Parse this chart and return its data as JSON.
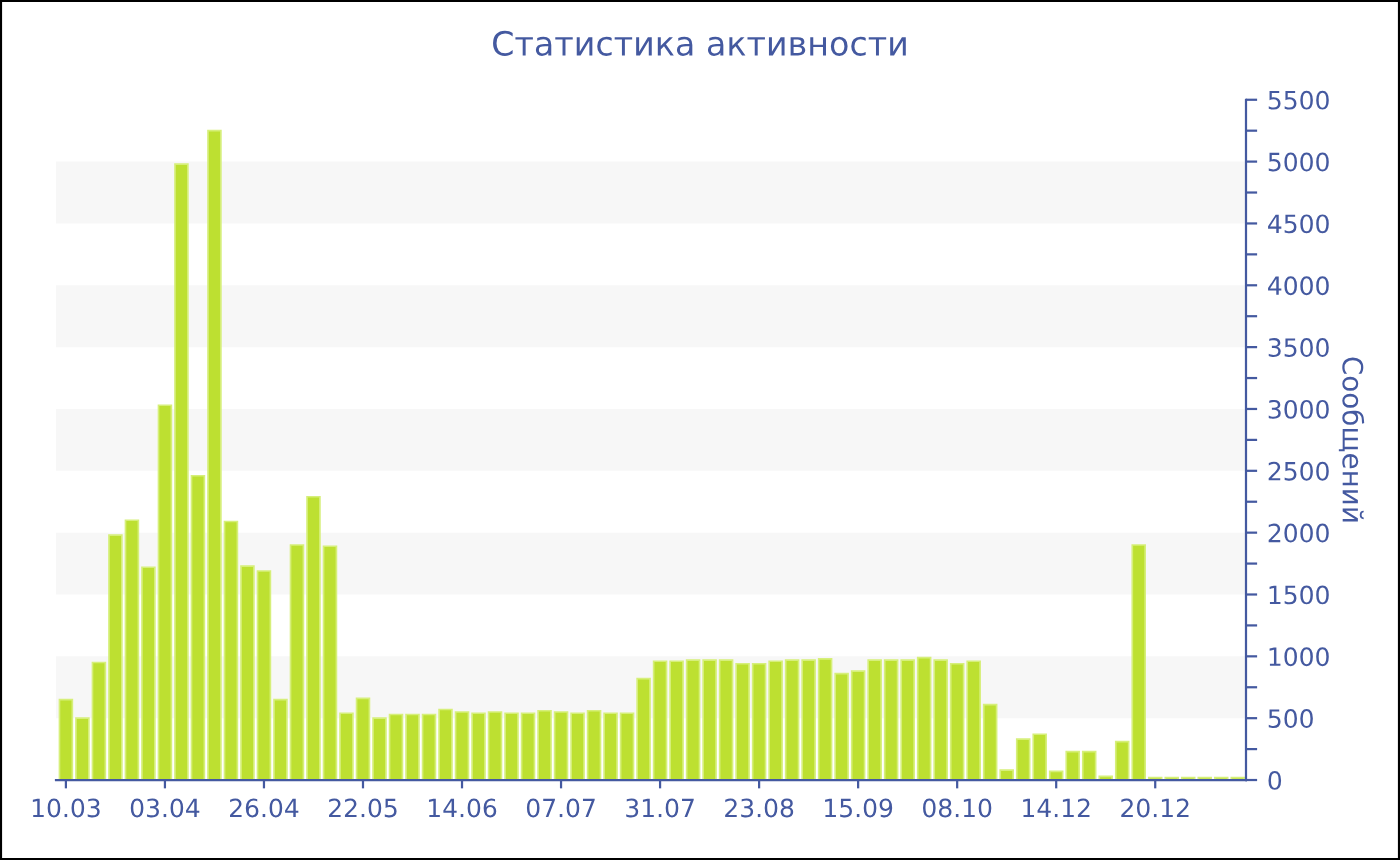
{
  "chart_data": {
    "type": "bar",
    "title": "Статистика активности",
    "ylabel": "Сообщений",
    "categories": [
      "10.03",
      null,
      null,
      null,
      null,
      null,
      "03.04",
      null,
      null,
      null,
      null,
      null,
      "26.04",
      null,
      null,
      null,
      null,
      null,
      "22.05",
      null,
      null,
      null,
      null,
      null,
      "14.06",
      null,
      null,
      null,
      null,
      null,
      "07.07",
      null,
      null,
      null,
      null,
      null,
      "31.07",
      null,
      null,
      null,
      null,
      null,
      "23.08",
      null,
      null,
      null,
      null,
      null,
      "15.09",
      null,
      null,
      null,
      null,
      null,
      "08.10",
      null,
      null,
      null,
      null,
      null,
      "14.12",
      null,
      null,
      null,
      null,
      null,
      "20.12",
      null,
      null,
      null,
      null,
      null
    ],
    "values": [
      650,
      500,
      950,
      1980,
      2100,
      1720,
      3030,
      4980,
      2460,
      5250,
      2090,
      1730,
      1690,
      650,
      1900,
      2290,
      1890,
      540,
      660,
      500,
      530,
      530,
      530,
      570,
      550,
      540,
      550,
      540,
      540,
      560,
      550,
      540,
      560,
      540,
      540,
      820,
      960,
      960,
      970,
      970,
      970,
      940,
      940,
      960,
      970,
      970,
      980,
      860,
      880,
      970,
      970,
      970,
      990,
      970,
      940,
      960,
      610,
      80,
      330,
      370,
      70,
      230,
      230,
      30,
      310,
      1900,
      20,
      20,
      20,
      20,
      20,
      20
    ],
    "color": "#bde031",
    "ylim": [
      0,
      5500
    ],
    "yticks": [
      0,
      {
        "value": 250,
        "label": null
      },
      500,
      {
        "value": 750,
        "label": null
      },
      1000,
      {
        "value": 1250,
        "label": null
      },
      1500,
      {
        "value": 1750,
        "label": null
      },
      2000,
      {
        "value": 2250,
        "label": null
      },
      2500,
      {
        "value": 2750,
        "label": null
      },
      3000,
      {
        "value": 3250,
        "label": null
      },
      3500,
      {
        "value": 3750,
        "label": null
      },
      4000,
      {
        "value": 4250,
        "label": null
      },
      4500,
      {
        "value": 4750,
        "label": null
      },
      5000,
      {
        "value": 5250,
        "label": null
      },
      5500
    ],
    "bands": [
      {
        "axis": "y",
        "from": 500,
        "to": 1000,
        "color": "#f7f7f7"
      },
      {
        "axis": "y",
        "from": 1500,
        "to": 2000,
        "color": "#f7f7f7"
      },
      {
        "axis": "y",
        "from": 2500,
        "to": 3000,
        "color": "#f7f7f7"
      },
      {
        "axis": "y",
        "from": 3500,
        "to": 4000,
        "color": "#f7f7f7"
      },
      {
        "axis": "y",
        "from": 4500,
        "to": 5000,
        "color": "#f7f7f7"
      }
    ],
    "grid": false,
    "legend": false
  }
}
